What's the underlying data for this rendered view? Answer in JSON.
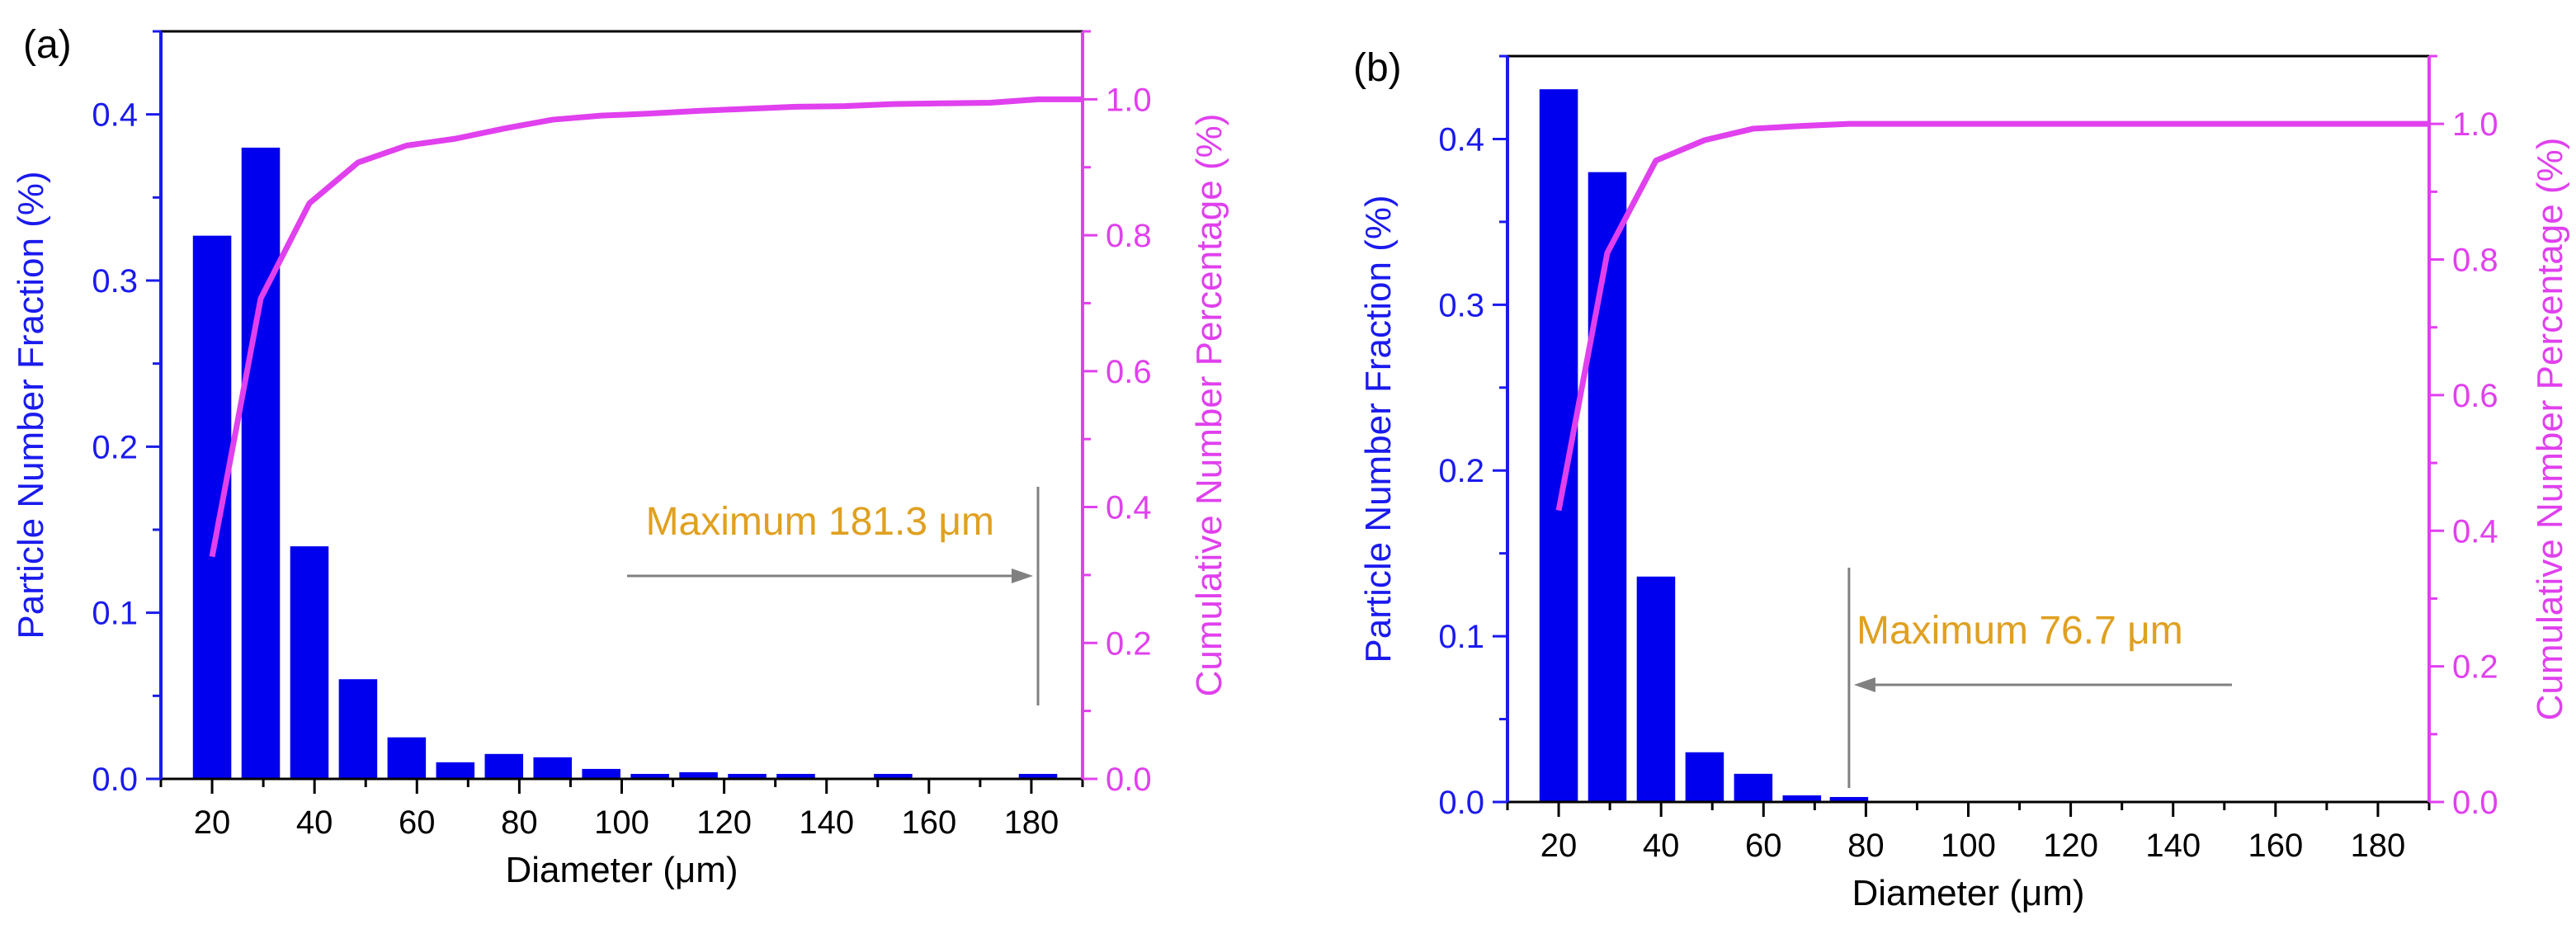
{
  "colors": {
    "bar": "#0000ee",
    "left_axis": "#1a1aee",
    "right_axis": "#e040ee",
    "cumulative_line": "#e040ee",
    "annotation_text": "#e0a020",
    "annotation_arrow": "#808080",
    "axis_black": "#000000"
  },
  "chart_data": [
    {
      "panel_label": "(a)",
      "type": "bar",
      "xlabel": "Diameter (μm)",
      "ylabel_left": "Particle Number Fraction (%)",
      "ylabel_right": "Cumulative Number Percentage (%)",
      "xlim": [
        10,
        190
      ],
      "ylim_left": [
        0,
        0.45
      ],
      "ylim_right": [
        0,
        1.1
      ],
      "x_ticks": [
        20,
        40,
        60,
        80,
        100,
        120,
        140,
        160,
        180
      ],
      "y_ticks_left": [
        0.0,
        0.1,
        0.2,
        0.3,
        0.4
      ],
      "y_ticks_right": [
        0.0,
        0.2,
        0.4,
        0.6,
        0.8,
        1.0
      ],
      "bar_width": 7.5,
      "bars": {
        "x": [
          20,
          29.5,
          39,
          48.5,
          58,
          67.5,
          77,
          86.5,
          96,
          105.5,
          115,
          124.5,
          134,
          143.5,
          153,
          162.5,
          172,
          181.3
        ],
        "values": [
          0.327,
          0.38,
          0.14,
          0.06,
          0.025,
          0.01,
          0.015,
          0.013,
          0.006,
          0.003,
          0.004,
          0.003,
          0.003,
          0.0005,
          0.003,
          0.0005,
          0.0005,
          0.003
        ]
      },
      "cumulative": {
        "x": [
          20,
          29.5,
          39,
          48.5,
          58,
          67.5,
          77,
          86.5,
          96,
          105.5,
          115,
          124.5,
          134,
          143.5,
          153,
          162.5,
          172,
          181.3,
          190
        ],
        "values": [
          0.327,
          0.707,
          0.847,
          0.907,
          0.932,
          0.942,
          0.957,
          0.97,
          0.976,
          0.979,
          0.983,
          0.986,
          0.989,
          0.99,
          0.993,
          0.994,
          0.995,
          1.0,
          1.0
        ]
      },
      "annotation": {
        "text": "Maximum 181.3 μm",
        "value": 181.3
      }
    },
    {
      "panel_label": "(b)",
      "type": "bar",
      "xlabel": "Diameter (μm)",
      "ylabel_left": "Particle Number Fraction (%)",
      "ylabel_right": "Cumulative Number Percentage (%)",
      "xlim": [
        10,
        190
      ],
      "ylim_left": [
        0,
        0.45
      ],
      "ylim_right": [
        0,
        1.1
      ],
      "x_ticks": [
        20,
        40,
        60,
        80,
        100,
        120,
        140,
        160,
        180
      ],
      "y_ticks_left": [
        0.0,
        0.1,
        0.2,
        0.3,
        0.4
      ],
      "y_ticks_right": [
        0.0,
        0.2,
        0.4,
        0.6,
        0.8,
        1.0
      ],
      "bar_width": 7.5,
      "bars": {
        "x": [
          20,
          29.5,
          39,
          48.5,
          58,
          67.5,
          76.7
        ],
        "values": [
          0.43,
          0.38,
          0.136,
          0.03,
          0.017,
          0.004,
          0.003
        ]
      },
      "cumulative": {
        "x": [
          20,
          29.5,
          39,
          48.5,
          58,
          67.5,
          76.7,
          190
        ],
        "values": [
          0.43,
          0.81,
          0.946,
          0.976,
          0.993,
          0.997,
          1.0,
          1.0
        ]
      },
      "annotation": {
        "text": "Maximum 76.7 μm",
        "value": 76.7
      }
    }
  ]
}
